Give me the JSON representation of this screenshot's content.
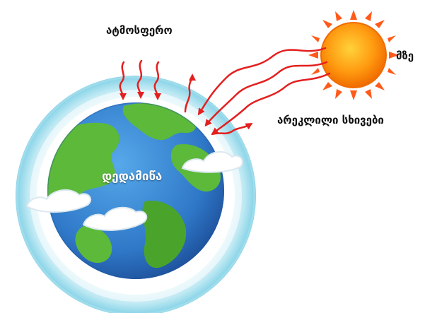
{
  "labels": {
    "atmosphere": "ატმოსფერო",
    "sun": "მზე",
    "reflected_rays": "არეკლილი სხივები",
    "earth": "დედამიწა"
  },
  "colors": {
    "atmosphere_ring": "#bfe9f3",
    "atmosphere_ring_dark": "#7fd0e6",
    "ocean": "#2f78c8",
    "land": "#5cb93a",
    "sun_core": "#ff8a00",
    "sun_rays": "#ff5a1a",
    "arrows": "#e3201f",
    "clouds": "#ffffff"
  },
  "icons": {
    "sun": "sun-icon",
    "earth": "earth-globe-icon",
    "cloud": "cloud-icon"
  }
}
